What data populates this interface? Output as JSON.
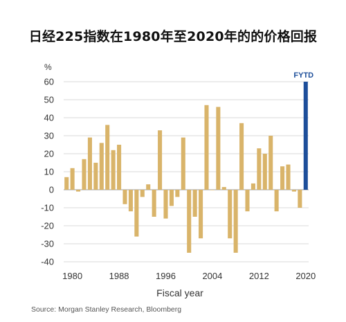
{
  "title": "日经225指数在1980年至2020年的的价格回报",
  "source": "Source: Morgan Stanley Research, Bloomberg",
  "chart_data": {
    "type": "bar",
    "title": "日经225指数在1980年至2020年的的价格回报",
    "xlabel": "Fiscal year",
    "ylabel": "%",
    "ylim": [
      -40,
      60
    ],
    "yticks": [
      60,
      50,
      40,
      30,
      20,
      10,
      0,
      -10,
      -20,
      -30,
      -40
    ],
    "xtick_labels": [
      "1980",
      "1988",
      "1996",
      "2004",
      "2012",
      "2020"
    ],
    "highlight_label": "FYTD",
    "colors": {
      "bar": "#d9b46a",
      "highlight": "#1d4e9a",
      "grid": "#cccccc",
      "zero": "#999999"
    },
    "categories": [
      "1979",
      "1980",
      "1981",
      "1982",
      "1983",
      "1984",
      "1985",
      "1986",
      "1987",
      "1988",
      "1989",
      "1990",
      "1991",
      "1992",
      "1993",
      "1994",
      "1995",
      "1996",
      "1997",
      "1998",
      "1999",
      "2000",
      "2001",
      "2002",
      "2003",
      "2004",
      "2005",
      "2006",
      "2007",
      "2008",
      "2009",
      "2010",
      "2011",
      "2012",
      "2013",
      "2014",
      "2015",
      "2016",
      "2017",
      "2018",
      "2019",
      "2020"
    ],
    "values": [
      7,
      12,
      -1,
      17,
      29,
      15,
      26,
      36,
      22,
      25,
      -8,
      -12,
      -26,
      -4,
      3,
      -15,
      33,
      -16,
      -9,
      -4,
      29,
      -35,
      -15,
      -27,
      47,
      0,
      46,
      1.5,
      -27,
      -35,
      37,
      -12,
      3.5,
      23,
      20,
      30,
      -12,
      13,
      14,
      -1,
      -10,
      60
    ],
    "highlight_index": 41
  }
}
